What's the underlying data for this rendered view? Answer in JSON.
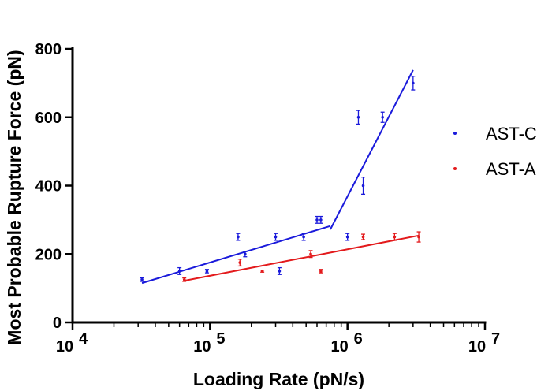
{
  "chart_data": {
    "type": "scatter",
    "title": "",
    "xlabel": "Loading Rate (pN/s)",
    "ylabel": "Most Probable Rupture Force (pN)",
    "xscale": "log",
    "xlim": [
      10000,
      10000000
    ],
    "ylim": [
      0,
      800
    ],
    "x_ticks": [
      10000,
      100000,
      1000000,
      10000000
    ],
    "x_tick_labels": [
      {
        "base": "10",
        "exp": "4"
      },
      {
        "base": "10",
        "exp": "5"
      },
      {
        "base": "10",
        "exp": "6"
      },
      {
        "base": "10",
        "exp": "7"
      }
    ],
    "y_ticks": [
      0,
      200,
      400,
      600,
      800
    ],
    "y_tick_labels": [
      "0",
      "200",
      "400",
      "600",
      "800"
    ],
    "legend_position": "right",
    "series": [
      {
        "name": "AST-C",
        "color": "#1a1adb",
        "points": [
          {
            "x": 32000,
            "y": 125,
            "err": 5
          },
          {
            "x": 60000,
            "y": 150,
            "err": 10
          },
          {
            "x": 95000,
            "y": 150,
            "err": 5
          },
          {
            "x": 160000,
            "y": 250,
            "err": 10
          },
          {
            "x": 180000,
            "y": 200,
            "err": 8
          },
          {
            "x": 300000,
            "y": 250,
            "err": 10
          },
          {
            "x": 320000,
            "y": 150,
            "err": 10
          },
          {
            "x": 480000,
            "y": 250,
            "err": 10
          },
          {
            "x": 600000,
            "y": 300,
            "err": 10
          },
          {
            "x": 640000,
            "y": 300,
            "err": 10
          },
          {
            "x": 1000000,
            "y": 250,
            "err": 10
          },
          {
            "x": 1200000,
            "y": 600,
            "err": 20
          },
          {
            "x": 1300000,
            "y": 400,
            "err": 25
          },
          {
            "x": 1800000,
            "y": 600,
            "err": 15
          },
          {
            "x": 3000000,
            "y": 700,
            "err": 20
          }
        ],
        "fit_lines": [
          {
            "x": [
              32000,
              750000
            ],
            "y": [
              115,
              282
            ]
          },
          {
            "x": [
              750000,
              3000000
            ],
            "y": [
              272,
              738
            ]
          }
        ]
      },
      {
        "name": "AST-A",
        "color": "#e31a1c",
        "points": [
          {
            "x": 65000,
            "y": 125,
            "err": 5
          },
          {
            "x": 165000,
            "y": 175,
            "err": 10
          },
          {
            "x": 240000,
            "y": 150,
            "err": 3
          },
          {
            "x": 540000,
            "y": 200,
            "err": 10
          },
          {
            "x": 640000,
            "y": 150,
            "err": 5
          },
          {
            "x": 1300000,
            "y": 250,
            "err": 8
          },
          {
            "x": 2200000,
            "y": 250,
            "err": 10
          },
          {
            "x": 3300000,
            "y": 250,
            "err": 15
          }
        ],
        "fit_lines": [
          {
            "x": [
              65000,
              3300000
            ],
            "y": [
              122,
              254
            ]
          }
        ]
      }
    ]
  }
}
